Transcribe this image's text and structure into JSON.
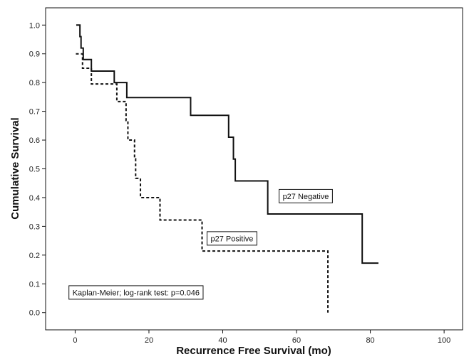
{
  "chart_data": {
    "type": "line",
    "title": "",
    "xlabel": "Recurrence Free Survival (mo)",
    "ylabel": "Cumulative Survival",
    "xlim": [
      -8,
      105
    ],
    "ylim": [
      -0.06,
      1.06
    ],
    "xticks": [
      0,
      20,
      40,
      60,
      80,
      100
    ],
    "yticks": [
      0.0,
      0.1,
      0.2,
      0.3,
      0.4,
      0.5,
      0.6,
      0.7,
      0.8,
      0.9,
      1.0
    ],
    "ytick_labels": [
      "0.0",
      "0.1",
      "0.2",
      "0.3",
      "0.4",
      "0.5",
      "0.6",
      "0.7",
      "0.8",
      "0.9",
      "1.0"
    ],
    "grid": false,
    "series": [
      {
        "name": "p27 Negative",
        "line_style": "solid",
        "color": "#111111",
        "steps": [
          [
            0.3,
            1.0
          ],
          [
            1.3,
            0.96
          ],
          [
            1.6,
            0.92
          ],
          [
            2.2,
            0.88
          ],
          [
            4.4,
            0.84
          ],
          [
            10.6,
            0.8
          ],
          [
            14.0,
            0.748
          ],
          [
            31.3,
            0.686
          ],
          [
            41.6,
            0.61
          ],
          [
            42.9,
            0.534
          ],
          [
            43.4,
            0.458
          ],
          [
            52.2,
            0.343
          ],
          [
            77.8,
            0.172
          ],
          [
            82.2,
            0.172
          ]
        ]
      },
      {
        "name": "p27 Positive",
        "line_style": "dashed",
        "color": "#111111",
        "steps": [
          [
            0.2,
            0.9
          ],
          [
            2.0,
            0.85
          ],
          [
            4.4,
            0.795
          ],
          [
            11.3,
            0.734
          ],
          [
            13.8,
            0.668
          ],
          [
            14.3,
            0.6
          ],
          [
            16.1,
            0.535
          ],
          [
            16.4,
            0.467
          ],
          [
            17.7,
            0.4
          ],
          [
            23.0,
            0.322
          ],
          [
            34.4,
            0.214
          ],
          [
            68.5,
            0.0
          ]
        ]
      }
    ],
    "annotations": [
      {
        "text": "p27 Negative",
        "x": 62.5,
        "y": 0.405
      },
      {
        "text": "p27 Positive",
        "x": 42.5,
        "y": 0.258
      },
      {
        "text": "Kaplan-Meier; log-rank test: p=0.046",
        "x": 16.5,
        "y": 0.07
      }
    ]
  }
}
